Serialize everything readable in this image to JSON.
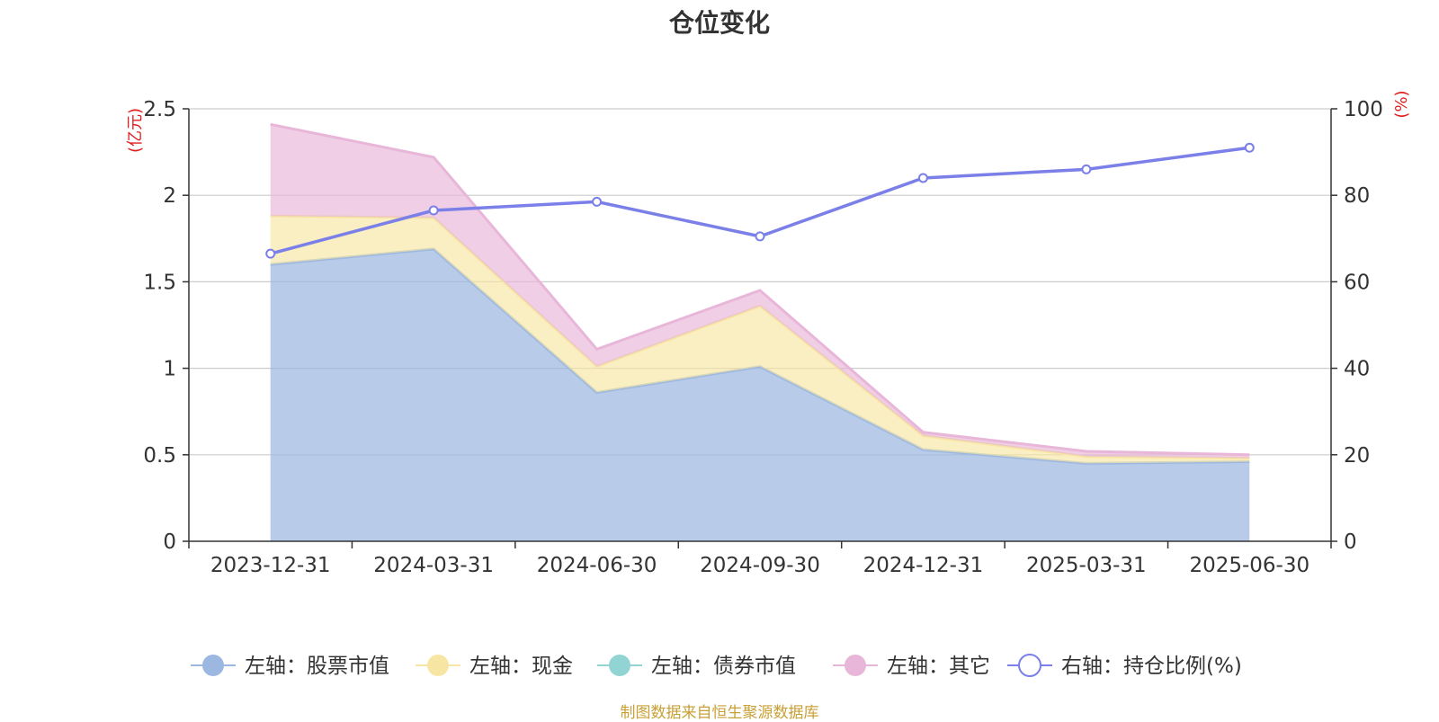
{
  "source_note": "制图数据来自恒生聚源数据库",
  "colors": {
    "stock": "#9db8e0",
    "cash": "#f7e6a3",
    "bond": "#92d3d3",
    "other": "#e8b6d8",
    "ratio": "#7b7fe8",
    "unit": "#e02020",
    "grid": "#cccccc"
  },
  "chart_data": {
    "type": "area",
    "title": "仓位变化",
    "categories": [
      "2023-12-31",
      "2024-03-31",
      "2024-06-30",
      "2024-09-30",
      "2024-12-31",
      "2025-03-31",
      "2025-06-30"
    ],
    "left_axis": {
      "unit": "(亿元)",
      "ylim": [
        0,
        2.5
      ],
      "ticks": [
        "0",
        "0.5",
        "1",
        "1.5",
        "2",
        "2.5"
      ]
    },
    "right_axis": {
      "unit": "(%)",
      "ylim": [
        0,
        100
      ],
      "ticks": [
        "0",
        "20",
        "40",
        "60",
        "80",
        "100"
      ]
    },
    "stacked_series": [
      {
        "key": "stock",
        "name": "左轴：股票市值",
        "values": [
          1.6,
          1.69,
          0.86,
          1.01,
          0.53,
          0.45,
          0.46
        ]
      },
      {
        "key": "cash",
        "name": "左轴：现金",
        "values": [
          0.28,
          0.18,
          0.15,
          0.35,
          0.08,
          0.04,
          0.02
        ]
      },
      {
        "key": "bond",
        "name": "左轴：债券市值",
        "values": [
          0,
          0,
          0,
          0,
          0,
          0,
          0
        ]
      },
      {
        "key": "other",
        "name": "左轴：其它",
        "values": [
          0.53,
          0.35,
          0.1,
          0.09,
          0.02,
          0.03,
          0.02
        ]
      }
    ],
    "line_series": {
      "key": "ratio",
      "name": "右轴：持仓比例(%)",
      "values": [
        66.5,
        76.5,
        78.5,
        70.5,
        84,
        86,
        91
      ]
    },
    "grid": true,
    "legend_position": "bottom"
  }
}
